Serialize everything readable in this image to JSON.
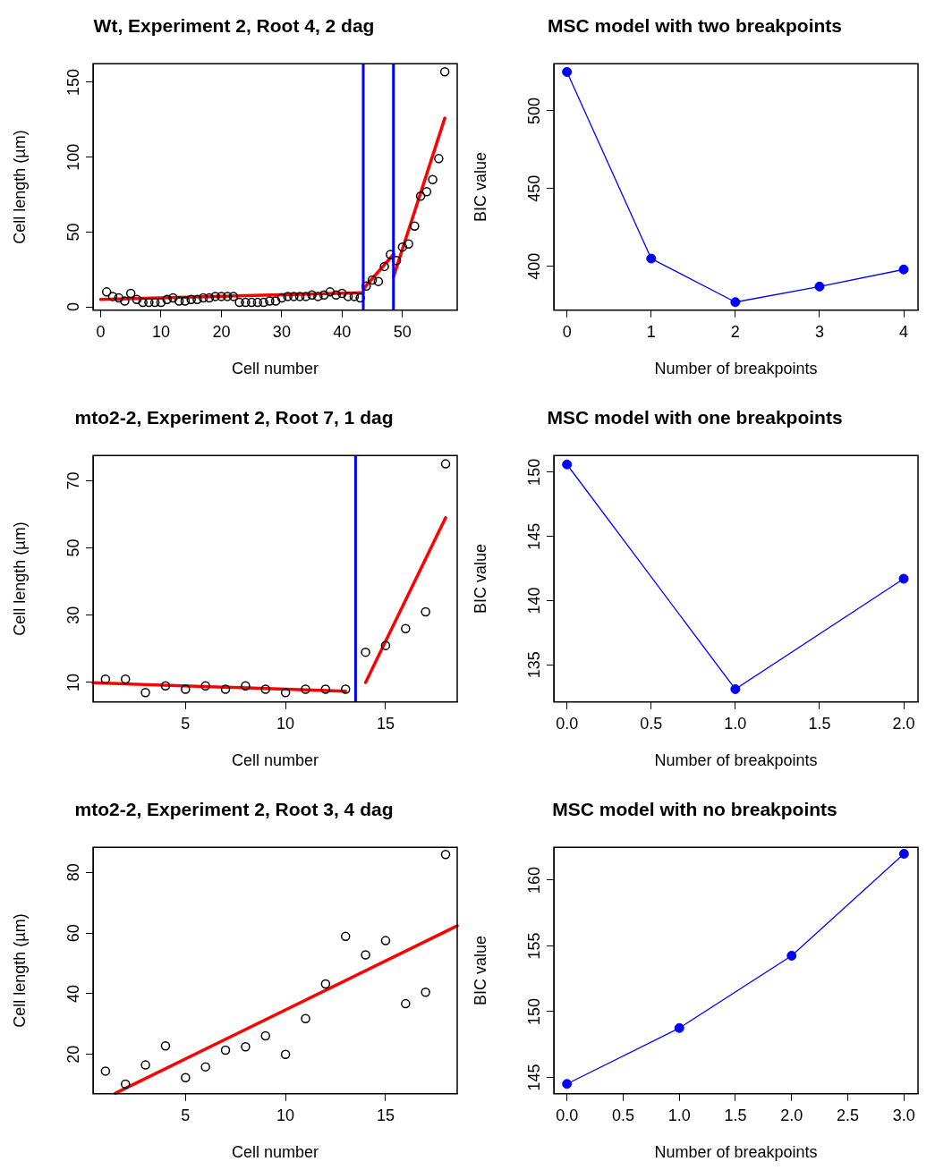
{
  "chart_data": [
    {
      "type": "scatter",
      "title": "Wt, Experiment 2, Root 4, 2 dag",
      "xlabel": "Cell number",
      "ylabel": "Cell length (µm)",
      "xlim": [
        -1.25,
        59.06
      ],
      "ylim": [
        -2.2,
        162.4
      ],
      "xticks": [
        0,
        10,
        20,
        30,
        40,
        50
      ],
      "yticks": [
        0,
        50,
        100,
        150
      ],
      "grid": false,
      "legend": false,
      "series": [
        {
          "color": "#000000",
          "marker": "circle",
          "x": [
            1,
            2,
            3,
            4,
            5,
            6,
            7,
            8,
            9,
            10,
            11,
            12,
            13,
            14,
            15,
            16,
            17,
            18,
            19,
            20,
            21,
            22,
            23,
            24,
            25,
            26,
            27,
            28,
            29,
            30,
            31,
            32,
            33,
            34,
            35,
            36,
            37,
            38,
            39,
            40,
            41,
            42,
            43,
            44,
            45,
            46,
            47,
            48,
            49,
            50,
            51,
            52,
            53,
            54,
            55,
            56,
            57
          ],
          "values": [
            10,
            7,
            6,
            4,
            9,
            5,
            3,
            3,
            3,
            3,
            5,
            6,
            4,
            4,
            5,
            5,
            6,
            6,
            7,
            7,
            7,
            7,
            3,
            3,
            3,
            3,
            3,
            4,
            4,
            6,
            7,
            7,
            7,
            7,
            8,
            7,
            8,
            10,
            8,
            9,
            7,
            7,
            6,
            14,
            18,
            17,
            27,
            35,
            31,
            40,
            42,
            54,
            74,
            77,
            85,
            99,
            157
          ]
        },
        {
          "type": "line",
          "color": "#ff0000",
          "marker": "none",
          "x": [
            0,
            43.5
          ],
          "values": [
            5,
            9.5
          ]
        },
        {
          "type": "line",
          "color": "#ff0000",
          "marker": "none",
          "x": [
            43.5,
            48.5
          ],
          "values": [
            12,
            35
          ]
        },
        {
          "type": "line",
          "color": "#ff0000",
          "marker": "none",
          "x": [
            48.5,
            57
          ],
          "values": [
            20,
            126
          ]
        }
      ],
      "ref_lines": [
        {
          "axis": "x",
          "value": 43.5,
          "color": "#0000ff"
        },
        {
          "axis": "x",
          "value": 48.5,
          "color": "#0000ff"
        }
      ]
    },
    {
      "type": "line",
      "title": "MSC model with two breakpoints",
      "xlabel": "Number of breakpoints",
      "ylabel": "BIC value",
      "xlim": [
        -0.156,
        4.17
      ],
      "ylim": [
        371.8,
        530.3
      ],
      "xticks": [
        0,
        1,
        2,
        3,
        4
      ],
      "yticks": [
        400,
        450,
        500
      ],
      "grid": false,
      "legend": false,
      "series": [
        {
          "color": "#0000ff",
          "marker": "circle",
          "x": [
            0,
            1,
            2,
            3,
            4
          ],
          "values": [
            525,
            405,
            377,
            387,
            398
          ]
        }
      ]
    },
    {
      "type": "scatter",
      "title": "mto2-2, Experiment 2, Root 7, 1 dag",
      "xlabel": "Cell number",
      "ylabel": "Cell length (µm)",
      "xlim": [
        0.38,
        18.58
      ],
      "ylim": [
        4.2,
        77.5
      ],
      "xticks": [
        5,
        10,
        15
      ],
      "yticks": [
        10,
        30,
        50,
        70
      ],
      "grid": false,
      "legend": false,
      "series": [
        {
          "color": "#000000",
          "marker": "circle",
          "x": [
            1,
            2,
            3,
            4,
            5,
            6,
            7,
            8,
            9,
            10,
            11,
            12,
            13,
            14,
            15,
            16,
            17,
            18
          ],
          "values": [
            11,
            11,
            7,
            9,
            8,
            9,
            8,
            9,
            8,
            7,
            8,
            8,
            8,
            19,
            21,
            26,
            31,
            75
          ]
        },
        {
          "type": "line",
          "color": "#ff0000",
          "marker": "none",
          "x": [
            0.38,
            13
          ],
          "values": [
            9.9,
            7.4
          ]
        },
        {
          "type": "line",
          "color": "#ff0000",
          "marker": "none",
          "x": [
            14,
            18
          ],
          "values": [
            10,
            59
          ]
        }
      ],
      "ref_lines": [
        {
          "axis": "x",
          "value": 13.5,
          "color": "#0000ff"
        }
      ]
    },
    {
      "type": "line",
      "title": "MSC model with one breakpoints",
      "xlabel": "Number of breakpoints",
      "ylabel": "BIC value",
      "xlim": [
        -0.078,
        2.085
      ],
      "ylim": [
        132.1,
        151.3
      ],
      "xticks": [
        {
          "value": 0,
          "label": "0.0"
        },
        {
          "value": 0.5,
          "label": "0.5"
        },
        {
          "value": 1,
          "label": "1.0"
        },
        {
          "value": 1.5,
          "label": "1.5"
        },
        {
          "value": 2,
          "label": "2.0"
        }
      ],
      "yticks": [
        135,
        140,
        145,
        150
      ],
      "grid": false,
      "legend": false,
      "series": [
        {
          "color": "#0000ff",
          "marker": "circle",
          "x": [
            0,
            1,
            2
          ],
          "values": [
            150.6,
            133.1,
            141.7
          ]
        }
      ]
    },
    {
      "type": "scatter",
      "title": "mto2-2, Experiment 2, Root 3, 4 dag",
      "xlabel": "Cell number",
      "ylabel": "Cell length (µm)",
      "xlim": [
        0.38,
        18.58
      ],
      "ylim": [
        7,
        88.3
      ],
      "xticks": [
        5,
        10,
        15
      ],
      "yticks": [
        20,
        40,
        60,
        80
      ],
      "grid": false,
      "legend": false,
      "series": [
        {
          "color": "#000000",
          "marker": "circle",
          "x": [
            1,
            2,
            3,
            4,
            5,
            6,
            7,
            8,
            9,
            10,
            11,
            12,
            13,
            14,
            15,
            16,
            17,
            18
          ],
          "values": [
            14.5,
            10.2,
            16.5,
            22.8,
            12.3,
            15.9,
            21.4,
            22.5,
            26.1,
            20,
            31.8,
            43.2,
            58.9,
            52.8,
            57.5,
            36.7,
            40.5,
            85.9
          ]
        },
        {
          "type": "line",
          "color": "#ff0000",
          "marker": "none",
          "x": [
            1.5,
            18.58
          ],
          "values": [
            7.2,
            62.4
          ]
        }
      ]
    },
    {
      "type": "line",
      "title": "MSC model with no breakpoints",
      "xlabel": "Number of breakpoints",
      "ylabel": "BIC value",
      "xlim": [
        -0.117,
        3.125
      ],
      "ylim": [
        143.75,
        162.5
      ],
      "xticks": [
        {
          "value": 0,
          "label": "0.0"
        },
        {
          "value": 0.5,
          "label": "0.5"
        },
        {
          "value": 1,
          "label": "1.0"
        },
        {
          "value": 1.5,
          "label": "1.5"
        },
        {
          "value": 2,
          "label": "2.0"
        },
        {
          "value": 2.5,
          "label": "2.5"
        },
        {
          "value": 3,
          "label": "3.0"
        }
      ],
      "yticks": [
        145,
        150,
        155,
        160
      ],
      "grid": false,
      "legend": false,
      "series": [
        {
          "color": "#0000ff",
          "marker": "circle",
          "x": [
            0,
            1,
            2,
            3
          ],
          "values": [
            144.5,
            148.75,
            154.25,
            162
          ]
        }
      ]
    }
  ]
}
